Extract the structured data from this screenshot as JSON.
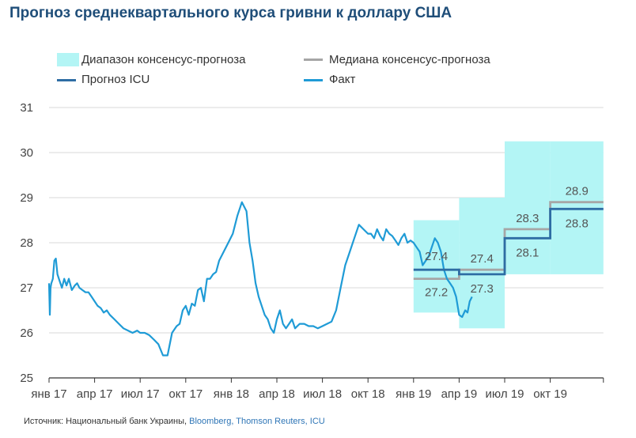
{
  "chart_data": {
    "type": "line",
    "title": "Прогноз среднеквартального курса гривни к доллару США",
    "xlabel": "",
    "ylabel": "",
    "ylim": [
      25,
      31
    ],
    "yticks": [
      25,
      26,
      27,
      28,
      29,
      30,
      31
    ],
    "x_ticks": [
      "янв 17",
      "апр 17",
      "июл 17",
      "окт 17",
      "янв 18",
      "апр 18",
      "июл 18",
      "окт 18",
      "янв 19",
      "апр 19",
      "июл 19",
      "окт 19"
    ],
    "x_range_months": [
      0,
      36.5
    ],
    "legend": {
      "range": "Диапазон консенсус-прогноза",
      "median": "Медиана консенсус-прогноза",
      "icu": "Прогноз ICU",
      "fact": "Факт"
    },
    "series": [
      {
        "name": "Факт",
        "x": [
          0,
          0.05,
          0.1,
          0.15,
          0.25,
          0.35,
          0.45,
          0.55,
          0.7,
          0.85,
          1.0,
          1.15,
          1.3,
          1.5,
          1.7,
          1.85,
          2.0,
          2.2,
          2.4,
          2.6,
          2.8,
          3.0,
          3.2,
          3.4,
          3.6,
          3.8,
          4.0,
          4.3,
          4.6,
          4.9,
          5.2,
          5.5,
          5.8,
          6.0,
          6.3,
          6.6,
          6.9,
          7.2,
          7.5,
          7.8,
          8.1,
          8.4,
          8.6,
          8.8,
          9.0,
          9.2,
          9.4,
          9.6,
          9.8,
          10.0,
          10.2,
          10.4,
          10.6,
          10.8,
          11.0,
          11.2,
          11.5,
          11.8,
          12.1,
          12.4,
          12.7,
          13.0,
          13.2,
          13.4,
          13.6,
          13.8,
          14.0,
          14.2,
          14.4,
          14.6,
          14.8,
          15.0,
          15.2,
          15.4,
          15.6,
          15.8,
          16.0,
          16.2,
          16.5,
          16.8,
          17.1,
          17.4,
          17.7,
          18.0,
          18.3,
          18.6,
          18.9,
          19.2,
          19.5,
          19.8,
          20.1,
          20.4,
          20.7,
          21.0,
          21.2,
          21.4,
          21.6,
          21.8,
          22.0,
          22.2,
          22.4,
          22.6,
          22.8,
          23.0,
          23.2,
          23.4,
          23.6,
          23.8,
          24.0,
          24.2,
          24.4,
          24.6,
          24.8,
          25.0,
          25.2,
          25.4,
          25.6,
          25.8,
          26.0,
          26.2,
          26.4,
          26.6,
          26.8,
          27.0,
          27.2,
          27.4,
          27.55,
          27.7,
          27.85
        ],
        "values": [
          27.1,
          26.4,
          27.0,
          27.1,
          27.2,
          27.6,
          27.65,
          27.3,
          27.15,
          27.0,
          27.2,
          27.05,
          27.2,
          26.95,
          27.05,
          27.1,
          27.0,
          26.95,
          26.9,
          26.9,
          26.8,
          26.7,
          26.6,
          26.55,
          26.45,
          26.5,
          26.4,
          26.3,
          26.2,
          26.1,
          26.05,
          26.0,
          26.05,
          26.0,
          26.0,
          25.95,
          25.85,
          25.75,
          25.5,
          25.5,
          26.0,
          26.15,
          26.2,
          26.5,
          26.6,
          26.4,
          26.65,
          26.6,
          26.95,
          27.0,
          26.7,
          27.2,
          27.2,
          27.3,
          27.35,
          27.6,
          27.8,
          28.0,
          28.2,
          28.6,
          28.9,
          28.7,
          28.0,
          27.6,
          27.1,
          26.8,
          26.6,
          26.4,
          26.3,
          26.1,
          26.0,
          26.3,
          26.5,
          26.2,
          26.1,
          26.2,
          26.3,
          26.1,
          26.2,
          26.2,
          26.15,
          26.15,
          26.1,
          26.15,
          26.2,
          26.25,
          26.5,
          27.0,
          27.5,
          27.8,
          28.1,
          28.4,
          28.3,
          28.2,
          28.2,
          28.1,
          28.3,
          28.15,
          28.05,
          28.3,
          28.2,
          28.15,
          28.05,
          27.95,
          28.1,
          28.2,
          28.0,
          28.05,
          28.0,
          27.9,
          27.8,
          27.5,
          27.6,
          27.7,
          27.9,
          28.1,
          28.0,
          27.8,
          27.4,
          27.2,
          27.1,
          27.0,
          26.8,
          26.4,
          26.35,
          26.5,
          26.45,
          26.7,
          26.8
        ]
      },
      {
        "name": "Прогноз ICU",
        "quarters": [
          [
            24,
            27
          ],
          [
            27,
            30
          ],
          [
            30,
            33
          ],
          [
            33,
            36.5
          ]
        ],
        "values": [
          27.4,
          27.3,
          28.1,
          28.75
        ],
        "labels": [
          "27.4",
          "27.3",
          "28.1",
          "28.8"
        ]
      },
      {
        "name": "Медиана консенсус-прогноза",
        "quarters": [
          [
            24,
            27
          ],
          [
            27,
            30
          ],
          [
            30,
            33
          ],
          [
            33,
            36.5
          ]
        ],
        "values": [
          27.2,
          27.4,
          28.3,
          28.9
        ],
        "labels": [
          "27.2",
          "27.4",
          "28.3",
          "28.9"
        ]
      },
      {
        "name": "Диапазон консенсус-прогноза",
        "quarters": [
          [
            24,
            27
          ],
          [
            27,
            30
          ],
          [
            30,
            33
          ],
          [
            33,
            36.5
          ]
        ],
        "low": [
          26.45,
          26.1,
          27.3,
          27.3
        ],
        "high": [
          28.5,
          29.0,
          30.25,
          30.25
        ]
      }
    ],
    "colors": {
      "range": "#b3f5f5",
      "median": "#a6a6a6",
      "icu": "#2e6da4",
      "fact": "#1f9bd6",
      "axis": "#333333",
      "grid": "#d9d9d9"
    }
  },
  "source": {
    "prefix": "Источник: Национальный банк Украины,",
    "rest": " Bloomberg, Thomson Reuters, ICU"
  }
}
